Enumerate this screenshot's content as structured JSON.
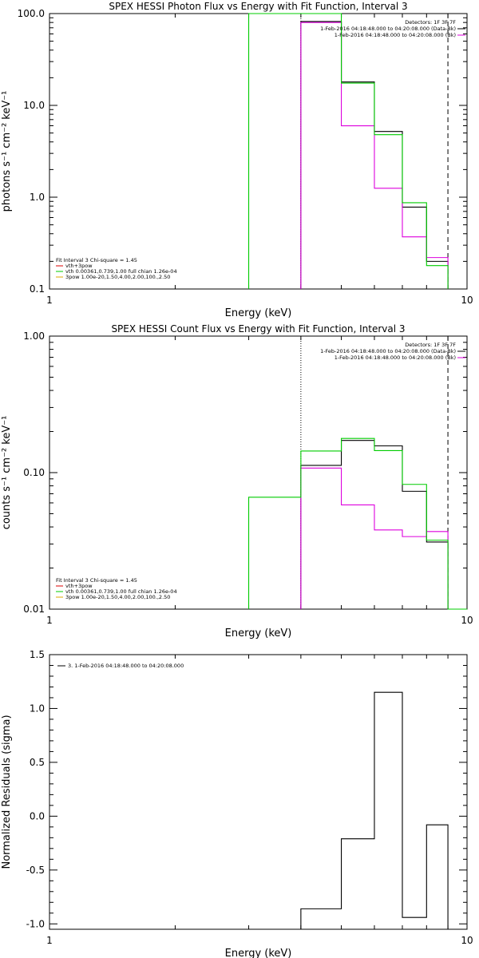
{
  "chart_data": [
    {
      "type": "line",
      "title": "SPEX HESSI Photon Flux vs Energy with Fit Function, Interval 3",
      "xlabel": "Energy (keV)",
      "ylabel": "photons s⁻¹ cm⁻² keV⁻¹",
      "x_scale": "log",
      "y_scale": "log",
      "xlim": [
        1,
        10
      ],
      "ylim": [
        0.1,
        100
      ],
      "x_tick_labels": [
        "1",
        "10"
      ],
      "y_tick_labels": [
        "0.1",
        "1.0",
        "10.0",
        "100.0"
      ],
      "vlines": [
        {
          "x": 4.0,
          "style": "dotted"
        },
        {
          "x": 9.0,
          "style": "dashed"
        }
      ],
      "series": [
        {
          "name": "1-Feb-2016 04:18:48.000 to 04:20:08.000 (Data-Bk)",
          "color": "#000000",
          "style": "step",
          "edges": [
            4.0,
            5.0,
            6.0,
            7.0,
            8.0,
            9.0
          ],
          "values": [
            82,
            18,
            5.2,
            0.78,
            0.2
          ]
        },
        {
          "name": "1-Feb-2016 04:18:48.000 to 04:20:08.000 (Bk)",
          "color": "#dd00dd",
          "style": "step",
          "edges": [
            4.0,
            5.0,
            6.0,
            7.0,
            8.0,
            9.0
          ],
          "values": [
            80,
            6.0,
            1.25,
            0.37,
            0.22
          ]
        },
        {
          "name": "vth",
          "color": "#00cc00",
          "style": "step",
          "edges": [
            3.0,
            4.0,
            5.0,
            6.0,
            7.0,
            8.0,
            9.0
          ],
          "values": [
            100,
            100,
            17.5,
            4.8,
            0.87,
            0.18
          ]
        }
      ],
      "legend_top_right": {
        "detectors": "Detectors: 1F 3F 7F",
        "entries": [
          {
            "text": "1-Feb-2016 04:18:48.000 to 04:20:08.000 (Data-Bk)",
            "color": "#000000"
          },
          {
            "text": "1-Feb-2016 04:18:48.000 to 04:20:08.000 (Bk)",
            "color": "#dd00dd"
          }
        ]
      },
      "legend_bottom_left": {
        "header": "Fit Interval  3    Chi-square = 1.45",
        "entries": [
          {
            "text": "vth+3pow",
            "color": "#dd0000"
          },
          {
            "text": "vth 0.00361,0.739,1.00   full chian 1.26e-04",
            "color": "#00cc00"
          },
          {
            "text": "3pow 1.00e-20,1.50,4.00,2.00,100.,2.50",
            "color": "#ddaa00"
          }
        ]
      }
    },
    {
      "type": "line",
      "title": "SPEX HESSI Count Flux vs Energy with Fit Function, Interval 3",
      "xlabel": "Energy (keV)",
      "ylabel": "counts s⁻¹ cm⁻² keV⁻¹",
      "x_scale": "log",
      "y_scale": "log",
      "xlim": [
        1,
        10
      ],
      "ylim": [
        0.01,
        1.0
      ],
      "x_tick_labels": [
        "1",
        "10"
      ],
      "y_tick_labels": [
        "0.01",
        "0.10",
        "1.00"
      ],
      "vlines": [
        {
          "x": 4.0,
          "style": "dotted"
        },
        {
          "x": 9.0,
          "style": "dashed"
        }
      ],
      "series": [
        {
          "name": "1-Feb-2016 04:18:48.000 to 04:20:08.000 (Data-Bk)",
          "color": "#000000",
          "style": "step",
          "edges": [
            4.0,
            5.0,
            6.0,
            7.0,
            8.0,
            9.0
          ],
          "values": [
            0.113,
            0.172,
            0.157,
            0.073,
            0.031
          ]
        },
        {
          "name": "1-Feb-2016 04:18:48.000 to 04:20:08.000 (Bk)",
          "color": "#dd00dd",
          "style": "step",
          "edges": [
            4.0,
            5.0,
            6.0,
            7.0,
            8.0,
            9.0
          ],
          "values": [
            0.108,
            0.058,
            0.038,
            0.034,
            0.037
          ]
        },
        {
          "name": "vth",
          "color": "#00cc00",
          "style": "step",
          "edges": [
            3.0,
            4.0,
            5.0,
            6.0,
            7.0,
            8.0,
            9.0,
            10.0
          ],
          "values": [
            0.066,
            0.144,
            0.178,
            0.145,
            0.082,
            0.032,
            0.01
          ]
        }
      ],
      "legend_top_right": {
        "detectors": "Detectors: 1F 3F 7F",
        "entries": [
          {
            "text": "1-Feb-2016 04:18:48.000 to 04:20:08.000 (Data-Bk)",
            "color": "#000000"
          },
          {
            "text": "1-Feb-2016 04:18:48.000 to 04:20:08.000 (Bk)",
            "color": "#dd00dd"
          }
        ]
      },
      "legend_bottom_left": {
        "header": "Fit Interval  3    Chi-square = 1.45",
        "entries": [
          {
            "text": "vth+3pow",
            "color": "#dd0000"
          },
          {
            "text": "vth 0.00361,0.739,1.00   full chian 1.26e-04",
            "color": "#00cc00"
          },
          {
            "text": "3pow 1.00e-20,1.50,4.00,2.00,100.,2.50",
            "color": "#ddaa00"
          }
        ]
      }
    },
    {
      "type": "line",
      "title": "",
      "xlabel": "Energy (keV)",
      "ylabel": "Normalized Residuals (sigma)",
      "x_scale": "log",
      "y_scale": "linear",
      "xlim": [
        1,
        10
      ],
      "ylim": [
        -1.05,
        1.5
      ],
      "x_tick_labels": [
        "1",
        "10"
      ],
      "y_ticks": [
        -1.0,
        -0.5,
        0.0,
        0.5,
        1.0,
        1.5
      ],
      "y_tick_labels": [
        "-1.0",
        "-0.5",
        "0.0",
        "0.5",
        "1.0",
        "1.5"
      ],
      "series": [
        {
          "name": "3.  1-Feb-2016 04:18:48.000 to 04:20:08.000",
          "color": "#000000",
          "style": "step",
          "edges": [
            4.0,
            5.0,
            6.0,
            7.0,
            8.0,
            9.0
          ],
          "values": [
            -0.86,
            -0.21,
            1.15,
            -0.94,
            -0.08
          ]
        }
      ],
      "legend_top_left": {
        "entries": [
          {
            "text": "3.  1-Feb-2016 04:18:48.000 to 04:20:08.000",
            "color": "#000000"
          }
        ]
      }
    }
  ]
}
